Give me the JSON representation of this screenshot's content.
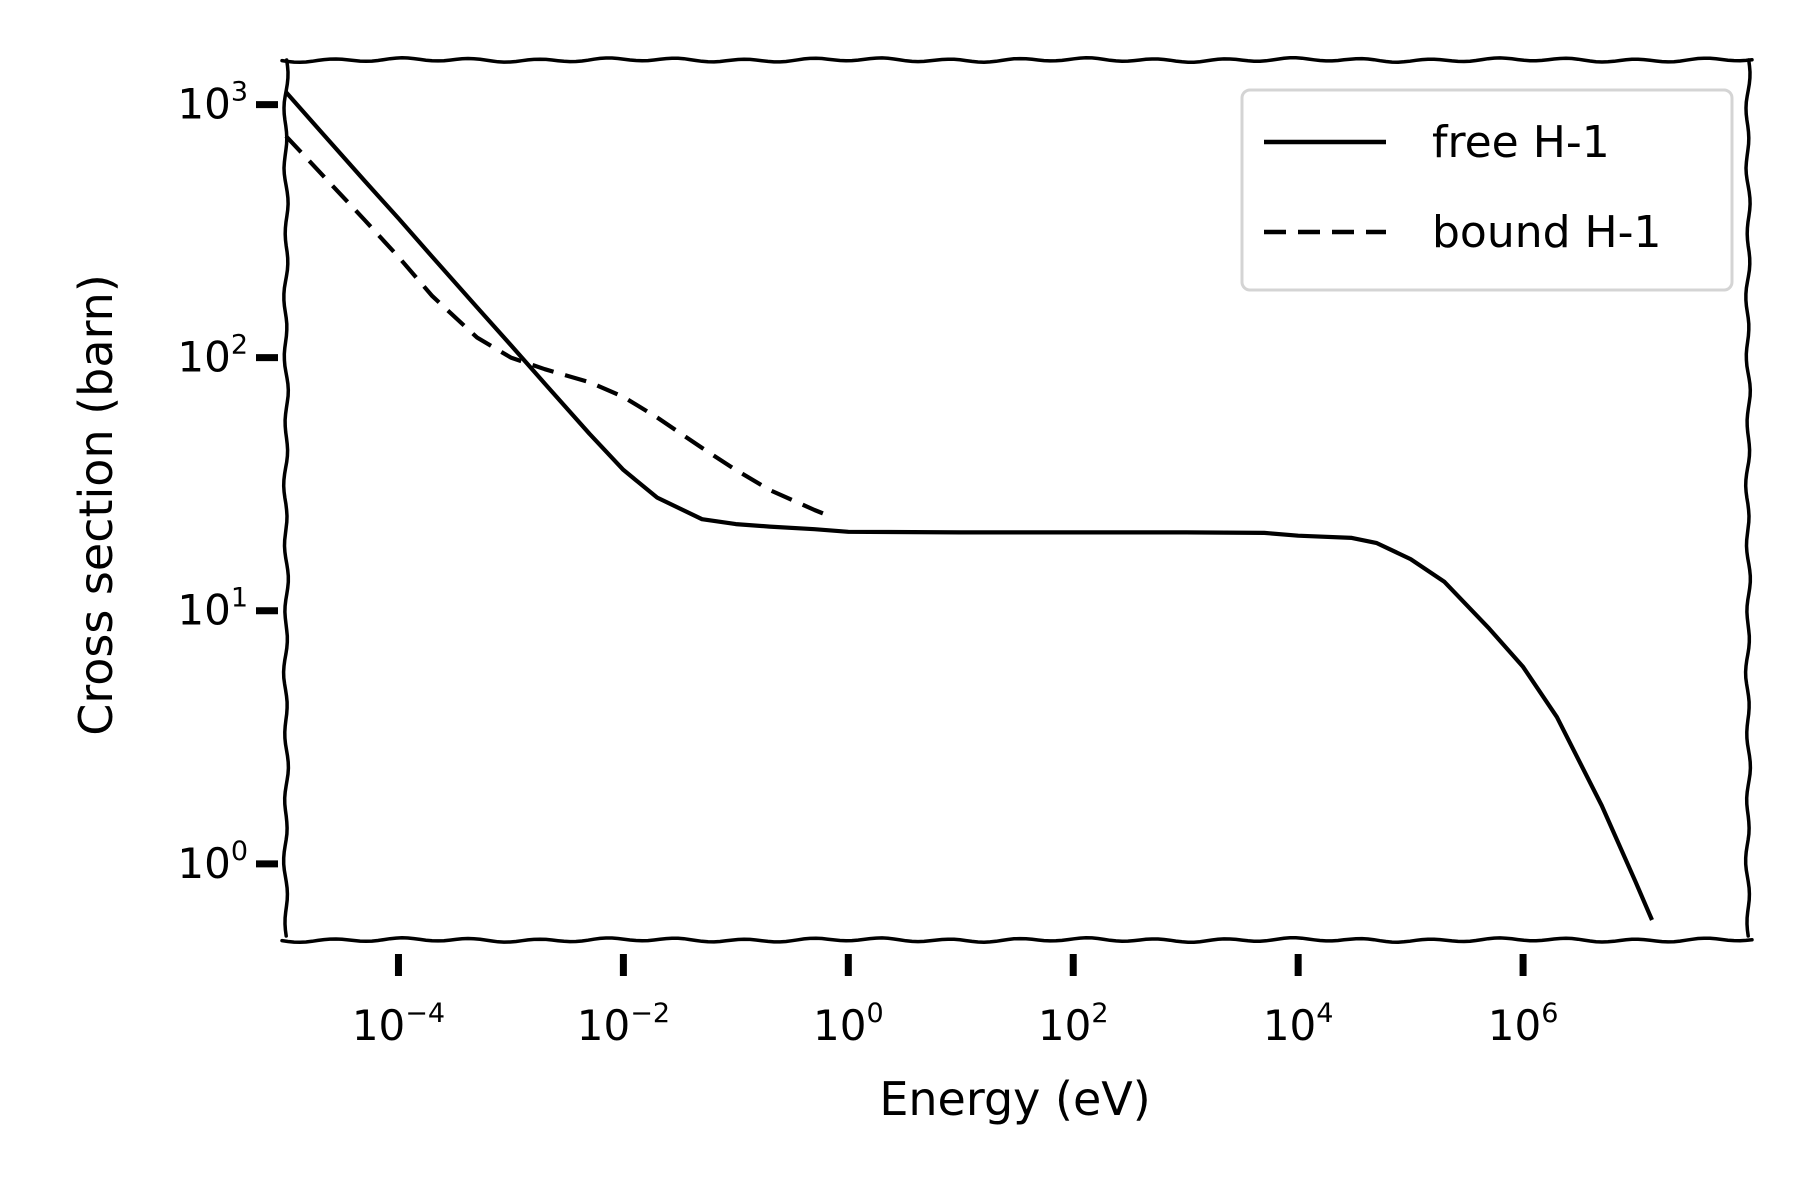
{
  "chart_data": {
    "type": "line",
    "xlabel": "Energy (eV)",
    "ylabel": "Cross section (barn)",
    "xscale": "log",
    "yscale": "log",
    "xlim": [
      1e-05,
      100000000.0
    ],
    "ylim": [
      0.5,
      1500
    ],
    "grid": false,
    "legend_position": "top-right",
    "x_ticks": [
      {
        "base": "10",
        "exp": "−4",
        "value": 0.0001
      },
      {
        "base": "10",
        "exp": "−2",
        "value": 0.01
      },
      {
        "base": "10",
        "exp": "0",
        "value": 1
      },
      {
        "base": "10",
        "exp": "2",
        "value": 100
      },
      {
        "base": "10",
        "exp": "4",
        "value": 10000
      },
      {
        "base": "10",
        "exp": "6",
        "value": 1000000
      }
    ],
    "y_ticks": [
      {
        "base": "10",
        "exp": "0",
        "value": 1
      },
      {
        "base": "10",
        "exp": "1",
        "value": 10
      },
      {
        "base": "10",
        "exp": "2",
        "value": 100
      },
      {
        "base": "10",
        "exp": "3",
        "value": 1000
      }
    ],
    "series": [
      {
        "name": "free H-1",
        "style": "solid",
        "color": "#000000",
        "x": [
          1e-05,
          2e-05,
          5e-05,
          0.0001,
          0.0002,
          0.0005,
          0.001,
          0.002,
          0.005,
          0.01,
          0.02,
          0.05,
          0.1,
          0.2,
          0.5,
          1,
          10,
          100,
          1000,
          5000,
          10000,
          30000,
          50000,
          100000,
          200000,
          500000,
          1000000,
          2000000,
          5000000,
          10000000,
          14000000
        ],
        "y": [
          1120,
          790,
          500,
          355,
          250,
          158,
          112,
          79,
          50,
          36,
          28,
          23,
          22,
          21.5,
          21,
          20.5,
          20.4,
          20.4,
          20.4,
          20.3,
          19.8,
          19.4,
          18.5,
          16,
          13,
          8.5,
          6,
          3.8,
          1.7,
          0.85,
          0.6
        ]
      },
      {
        "name": "bound H-1",
        "style": "dashed",
        "color": "#000000",
        "x": [
          1e-05,
          2e-05,
          5e-05,
          0.0001,
          0.0002,
          0.0005,
          0.001,
          0.002,
          0.005,
          0.01,
          0.02,
          0.05,
          0.1,
          0.2,
          0.5,
          0.63
        ],
        "y": [
          750,
          540,
          350,
          250,
          175,
          120,
          100,
          90,
          80,
          70,
          58,
          44,
          36,
          30,
          25,
          24
        ]
      }
    ]
  }
}
